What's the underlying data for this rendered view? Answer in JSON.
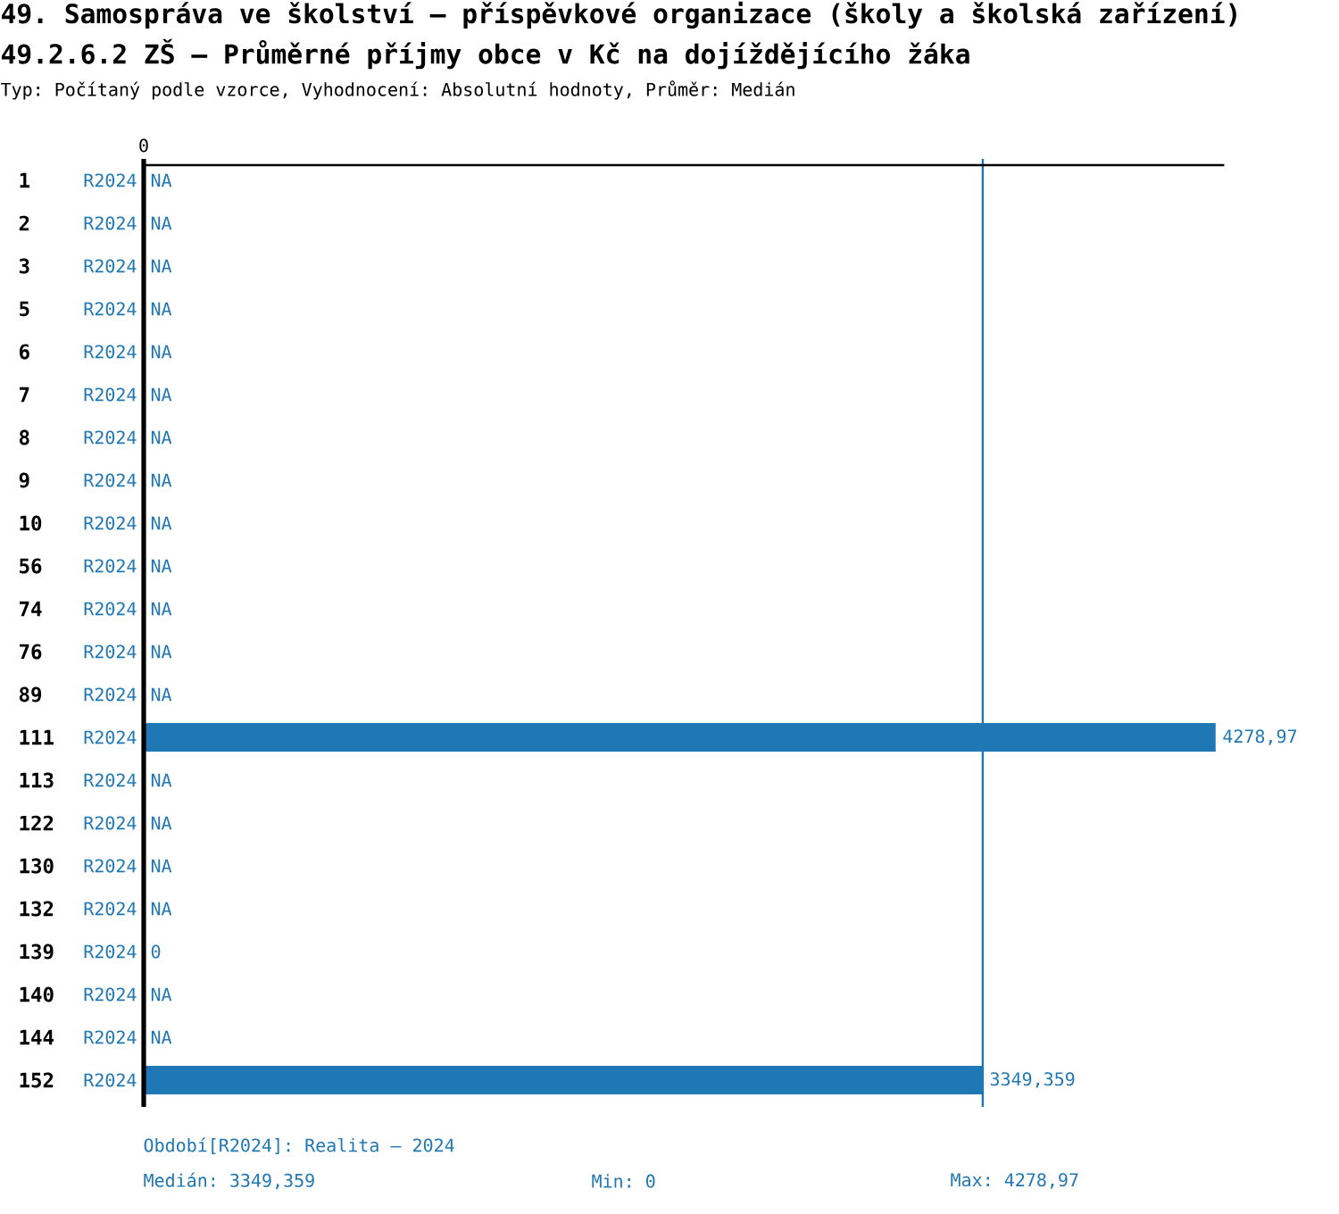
{
  "chart_data": {
    "type": "bar",
    "orientation": "horizontal",
    "title": "49. Samospráva ve školství – příspěvkové organizace (školy a školská zařízení)",
    "subtitle": "49.2.6.2 ZŠ – Průměrné příjmy obce v Kč na dojíždějícího žáka",
    "annotations": [
      "Typ: Počítaný podle vzorce, Vyhodnocení: Absolutní hodnoty, Průměr: Medián",
      "0",
      "Období[R2024]: Realita – 2024",
      "Medián: 3349,359",
      "Min: 0",
      "Max: 4278,97"
    ],
    "categories": [
      "1",
      "2",
      "3",
      "5",
      "6",
      "7",
      "8",
      "9",
      "10",
      "56",
      "74",
      "76",
      "89",
      "111",
      "113",
      "122",
      "130",
      "132",
      "139",
      "140",
      "144",
      "152"
    ],
    "series": [
      {
        "name": "R2024",
        "color": "#1f77b4",
        "values": [
          null,
          null,
          null,
          null,
          null,
          null,
          null,
          null,
          null,
          null,
          null,
          null,
          null,
          4278.97,
          null,
          null,
          null,
          null,
          0,
          null,
          null,
          3349.359
        ],
        "value_labels": [
          "NA",
          "NA",
          "NA",
          "NA",
          "NA",
          "NA",
          "NA",
          "NA",
          "NA",
          "NA",
          "NA",
          "NA",
          "NA",
          "4278,97",
          "NA",
          "NA",
          "NA",
          "NA",
          "0",
          "NA",
          "NA",
          "3349,359"
        ]
      }
    ],
    "ref_lines": [
      {
        "axis": "x",
        "value": 3349.359,
        "color": "#1f77b4"
      }
    ]
  }
}
